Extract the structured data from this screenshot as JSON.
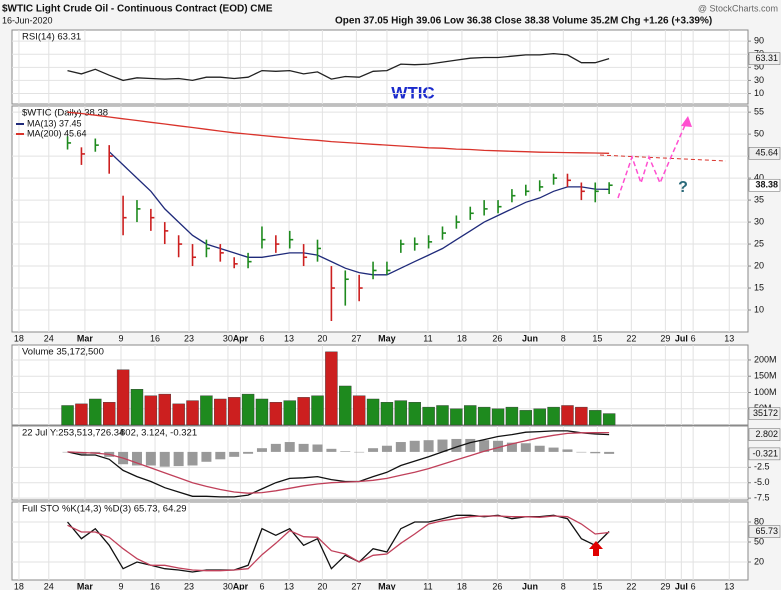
{
  "header": {
    "title": "$WTIC Light Crude Oil - Continuous Contract (EOD) CME",
    "date": "16-Jun-2020",
    "quote": "Open 37.05 High 39.06 Low 36.38 Close 38.38 Volume 35.2M Chg +1.26 (+3.39%)",
    "credit": "@ StockCharts.com",
    "symbol_label": "WTIC"
  },
  "chart_data": [
    {
      "type": "line",
      "title": "RSI(14) 63.31",
      "xlim": [
        -1,
        105
      ],
      "ylim": [
        -6,
        107
      ],
      "yticks": [
        90,
        70,
        50,
        30,
        10
      ],
      "x": [
        7,
        9,
        11,
        13,
        15,
        17,
        19,
        21,
        23,
        25,
        27,
        29,
        31,
        33,
        35,
        37,
        39,
        41,
        43,
        45,
        47,
        49,
        51,
        53,
        55,
        57,
        59,
        61,
        63,
        65,
        67,
        69,
        71,
        73,
        75,
        77,
        79,
        81,
        83,
        85
      ],
      "series": [
        {
          "color": "#222222",
          "values": [
            45,
            40,
            47,
            38,
            30,
            34,
            33,
            32,
            33,
            30,
            35,
            35,
            33,
            35,
            45,
            44,
            45,
            40,
            43,
            32,
            36,
            35,
            44,
            45,
            55,
            54,
            55,
            58,
            61,
            64,
            65,
            65,
            67,
            69,
            69,
            71,
            69,
            57,
            57,
            63.31
          ],
          "last_label": "63.31"
        }
      ]
    },
    {
      "type": "ohlc",
      "title": "$WTIC (Daily) 38.38",
      "annotation": "?",
      "xlim": [
        -1,
        105
      ],
      "ylim": [
        5,
        56.4
      ],
      "yticks": [
        55,
        50,
        45,
        40,
        35,
        30,
        25,
        20,
        15,
        10
      ],
      "xticks": [
        {
          "value": 0,
          "label": "18"
        },
        {
          "value": 4.3,
          "label": "24"
        },
        {
          "value": 9.5,
          "label": "Mar"
        },
        {
          "value": 14.7,
          "label": "9"
        },
        {
          "value": 19.6,
          "label": "16"
        },
        {
          "value": 24.5,
          "label": "23"
        },
        {
          "value": 30.1,
          "label": "30"
        },
        {
          "value": 31.9,
          "label": "Apr"
        },
        {
          "value": 35,
          "label": "6"
        },
        {
          "value": 38.9,
          "label": "13"
        },
        {
          "value": 43.7,
          "label": "20"
        },
        {
          "value": 48.6,
          "label": "27"
        },
        {
          "value": 53,
          "label": "May"
        },
        {
          "value": 58.9,
          "label": "11"
        },
        {
          "value": 63.8,
          "label": "18"
        },
        {
          "value": 68.9,
          "label": "26"
        },
        {
          "value": 73.6,
          "label": "Jun"
        },
        {
          "value": 78.4,
          "label": "8"
        },
        {
          "value": 83.3,
          "label": "15"
        },
        {
          "value": 88.2,
          "label": "22"
        },
        {
          "value": 93.1,
          "label": "29"
        },
        {
          "value": 95.4,
          "label": "Jul"
        },
        {
          "value": 97.1,
          "label": "6"
        },
        {
          "value": 102.3,
          "label": "13"
        }
      ],
      "up_color": "#1e8a1e",
      "down_color": "#cc1f1f",
      "x": [
        7,
        9,
        11,
        13,
        15,
        17,
        19,
        21,
        23,
        25,
        27,
        29,
        31,
        33,
        35,
        37,
        39,
        41,
        43,
        45,
        47,
        49,
        51,
        53,
        55,
        57,
        59,
        61,
        63,
        65,
        67,
        69,
        71,
        73,
        75,
        77,
        79,
        81,
        83,
        85
      ],
      "high": [
        49.5,
        47,
        49,
        47.5,
        36,
        35,
        33,
        30,
        27,
        25,
        26,
        25,
        22,
        23,
        29,
        27,
        28,
        25,
        26,
        20,
        19,
        18,
        21,
        21,
        26,
        26.5,
        27,
        29,
        31.5,
        33.5,
        35,
        35,
        37.5,
        38.5,
        39.5,
        41,
        41,
        39,
        39,
        39.06
      ],
      "low": [
        46.5,
        43,
        46,
        41,
        27,
        30,
        28,
        25,
        22,
        20,
        22,
        21,
        19.5,
        19.5,
        24,
        23,
        24,
        20,
        21,
        7.5,
        11,
        12,
        17,
        18,
        23,
        23.5,
        24,
        26,
        28.5,
        30.5,
        31.5,
        32,
        34.5,
        36,
        37,
        38.5,
        38,
        35,
        34.5,
        36.38
      ],
      "close": [
        48,
        45.5,
        47.5,
        45,
        31,
        33,
        31,
        28,
        25,
        22,
        24,
        23,
        20.5,
        21,
        26,
        25,
        26,
        22,
        24,
        15,
        17,
        15,
        19,
        19,
        25,
        25,
        25.5,
        27.5,
        30,
        32,
        33,
        33.5,
        36,
        37,
        38,
        40,
        39.5,
        37,
        37,
        38.38
      ],
      "close_label": "38.38",
      "series": [
        {
          "name": "MA(13) 37.45",
          "color": "#1f2a7a",
          "values": [
            null,
            null,
            null,
            46,
            43,
            40,
            37,
            33,
            30,
            27,
            25,
            24,
            23,
            22,
            22,
            22.5,
            23,
            23,
            22.5,
            21,
            19.5,
            18.5,
            18,
            18,
            19.5,
            21,
            22.5,
            24,
            26,
            28,
            30,
            31.5,
            33,
            34.5,
            35.5,
            37,
            38,
            38,
            37.5,
            37.45
          ]
        },
        {
          "name": "MA(200) 45.64",
          "color": "#d9332b",
          "values": [
            55,
            54.7,
            54.3,
            53.9,
            53.5,
            53.1,
            52.7,
            52.3,
            51.9,
            51.5,
            51.1,
            50.7,
            50.3,
            50,
            49.7,
            49.4,
            49.1,
            48.8,
            48.6,
            48.3,
            48.1,
            47.9,
            47.7,
            47.5,
            47.3,
            47.1,
            46.9,
            46.8,
            46.6,
            46.5,
            46.3,
            46.2,
            46.1,
            46,
            45.9,
            45.85,
            45.8,
            45.75,
            45.7,
            45.64
          ],
          "last_label": "45.64"
        }
      ]
    },
    {
      "type": "bar",
      "title": "Volume 35,172,500",
      "box_label": "35172",
      "xlim": [
        -1,
        105
      ],
      "ylim": [
        0,
        246
      ],
      "yticks": [
        {
          "value": 200,
          "label": "200M"
        },
        {
          "value": 150,
          "label": "150M"
        },
        {
          "value": 100,
          "label": "100M"
        },
        {
          "value": 50,
          "label": "50M"
        }
      ],
      "x": [
        7,
        9,
        11,
        13,
        15,
        17,
        19,
        21,
        23,
        25,
        27,
        29,
        31,
        33,
        35,
        37,
        39,
        41,
        43,
        45,
        47,
        49,
        51,
        53,
        55,
        57,
        59,
        61,
        63,
        65,
        67,
        69,
        71,
        73,
        75,
        77,
        79,
        81,
        83,
        85
      ],
      "values": [
        60,
        65,
        80,
        70,
        170,
        110,
        90,
        95,
        65,
        75,
        90,
        80,
        85,
        95,
        80,
        70,
        75,
        85,
        90,
        225,
        120,
        90,
        80,
        70,
        75,
        70,
        55,
        60,
        50,
        60,
        55,
        50,
        55,
        45,
        50,
        55,
        60,
        55,
        45,
        35.1725
      ]
    },
    {
      "type": "line",
      "title": "22 Jul Y:253,513,726.34",
      "subtitle": "802, 3.124, -0.321",
      "xlim": [
        -1,
        105
      ],
      "ylim": [
        -7.8,
        4.2
      ],
      "yticks": [
        -2.5,
        {
          "value": -5,
          "label": "-5.0"
        },
        -7.5
      ],
      "x": [
        7,
        9,
        11,
        13,
        15,
        17,
        19,
        21,
        23,
        25,
        27,
        29,
        31,
        33,
        35,
        37,
        39,
        41,
        43,
        45,
        47,
        49,
        51,
        53,
        55,
        57,
        59,
        61,
        63,
        65,
        67,
        69,
        71,
        73,
        75,
        77,
        79,
        81,
        83,
        85
      ],
      "series": [
        {
          "color": "#999999",
          "kind": "histogram",
          "values": [
            0,
            -0.4,
            -0.3,
            -0.8,
            -2,
            -2.2,
            -2.2,
            -2.4,
            -2.3,
            -2.2,
            -1.6,
            -1.2,
            -0.8,
            -0.3,
            0.6,
            1.3,
            1.6,
            1.3,
            1.2,
            0.5,
            0.1,
            0,
            0.6,
            1,
            1.6,
            1.8,
            1.9,
            2,
            2.1,
            2.1,
            1.9,
            1.8,
            1.5,
            1.4,
            1,
            0.7,
            0.4,
            0,
            -0.22,
            -0.321
          ],
          "last_label": "-0.321"
        },
        {
          "color": "#111111",
          "values": [
            0,
            -0.5,
            -0.5,
            -1.2,
            -3,
            -4,
            -4.8,
            -5.8,
            -6.5,
            -7.2,
            -7.2,
            -7.3,
            -7.3,
            -7,
            -6,
            -5,
            -4.3,
            -4.2,
            -4,
            -4.5,
            -4.8,
            -4.8,
            -4,
            -3.3,
            -2.2,
            -1.5,
            -0.8,
            0,
            0.8,
            1.5,
            2,
            2.5,
            2.8,
            3.2,
            3.3,
            3.4,
            3.4,
            3.1,
            2.9,
            2.802
          ],
          "last_label": "2.802"
        },
        {
          "color": "#c0405a",
          "values": [
            0,
            -0.1,
            -0.2,
            -0.4,
            -1,
            -1.8,
            -2.6,
            -3.4,
            -4.2,
            -5,
            -5.6,
            -6.1,
            -6.5,
            -6.7,
            -6.6,
            -6.3,
            -5.9,
            -5.5,
            -5.2,
            -5,
            -4.9,
            -4.8,
            -4.6,
            -4.3,
            -3.8,
            -3.3,
            -2.7,
            -2,
            -1.3,
            -0.6,
            0.1,
            0.7,
            1.3,
            1.8,
            2.3,
            2.7,
            3,
            3.1,
            3.12,
            3.124
          ]
        }
      ]
    },
    {
      "type": "line",
      "title": "Full STO %K(14,3) %D(3) 65.73, 64.29",
      "xlim": [
        -1,
        105
      ],
      "ylim": [
        -7,
        110
      ],
      "yticks": [
        80,
        50,
        20
      ],
      "xticks": [
        {
          "value": 0,
          "label": "18"
        },
        {
          "value": 4.3,
          "label": "24"
        },
        {
          "value": 9.5,
          "label": "Mar"
        },
        {
          "value": 14.7,
          "label": "9"
        },
        {
          "value": 19.6,
          "label": "16"
        },
        {
          "value": 24.5,
          "label": "23"
        },
        {
          "value": 30.1,
          "label": "30"
        },
        {
          "value": 31.9,
          "label": "Apr"
        },
        {
          "value": 35,
          "label": "6"
        },
        {
          "value": 38.9,
          "label": "13"
        },
        {
          "value": 43.7,
          "label": "20"
        },
        {
          "value": 48.6,
          "label": "27"
        },
        {
          "value": 53,
          "label": "May"
        },
        {
          "value": 58.9,
          "label": "11"
        },
        {
          "value": 63.8,
          "label": "18"
        },
        {
          "value": 68.9,
          "label": "26"
        },
        {
          "value": 73.6,
          "label": "Jun"
        },
        {
          "value": 78.4,
          "label": "8"
        },
        {
          "value": 83.3,
          "label": "15"
        },
        {
          "value": 88.2,
          "label": "22"
        },
        {
          "value": 93.1,
          "label": "29"
        },
        {
          "value": 95.4,
          "label": "Jul"
        },
        {
          "value": 97.1,
          "label": "6"
        },
        {
          "value": 102.3,
          "label": "13"
        }
      ],
      "x": [
        7,
        9,
        11,
        13,
        15,
        17,
        19,
        21,
        23,
        25,
        27,
        29,
        31,
        33,
        35,
        37,
        39,
        41,
        43,
        45,
        47,
        49,
        51,
        53,
        55,
        57,
        59,
        61,
        63,
        65,
        67,
        69,
        71,
        73,
        75,
        77,
        79,
        81,
        83,
        85
      ],
      "series": [
        {
          "color": "#111111",
          "values": [
            80,
            55,
            70,
            45,
            10,
            20,
            15,
            10,
            8,
            5,
            8,
            8,
            8,
            15,
            70,
            60,
            70,
            45,
            55,
            10,
            30,
            20,
            40,
            35,
            70,
            80,
            80,
            85,
            90,
            90,
            88,
            90,
            85,
            88,
            88,
            90,
            85,
            55,
            45,
            65.73
          ],
          "last_label": "65.73"
        },
        {
          "color": "#c0405a",
          "values": [
            75,
            65,
            65,
            57,
            40,
            25,
            15,
            15,
            11,
            8,
            7,
            7,
            8,
            10,
            31,
            48,
            67,
            58,
            57,
            37,
            32,
            20,
            30,
            32,
            48,
            62,
            77,
            82,
            85,
            88,
            89,
            89,
            88,
            88,
            87,
            89,
            88,
            77,
            62,
            64.29
          ]
        }
      ]
    }
  ]
}
